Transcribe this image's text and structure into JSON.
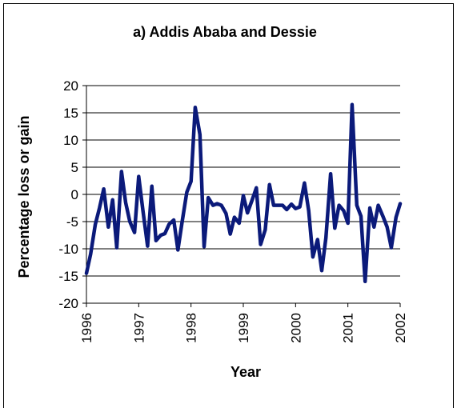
{
  "chart_data": {
    "type": "line",
    "title": "a) Addis Ababa and Dessie",
    "xlabel": "Year",
    "ylabel": "Percentage loss or gain",
    "ylim": [
      -20,
      20
    ],
    "xlim": [
      1996,
      2002
    ],
    "x_ticks": [
      "1996",
      "1997",
      "1998",
      "1999",
      "2000",
      "2001",
      "2002"
    ],
    "y_ticks": [
      "20",
      "15",
      "10",
      "5",
      "0",
      "-5",
      "-10",
      "-15",
      "-20"
    ],
    "grid": "horizontal",
    "line_color": "#0b1a7a",
    "series": [
      {
        "x": [
          1996.0,
          1996.08,
          1996.17,
          1996.25,
          1996.33,
          1996.42,
          1996.5,
          1996.58,
          1996.67,
          1996.75,
          1996.83,
          1996.92,
          1997.0,
          1997.08,
          1997.17,
          1997.25,
          1997.33,
          1997.42,
          1997.5,
          1997.58,
          1997.67,
          1997.75,
          1997.83,
          1997.92,
          1998.0,
          1998.08,
          1998.17,
          1998.25,
          1998.33,
          1998.42,
          1998.5,
          1998.58,
          1998.67,
          1998.75,
          1998.83,
          1998.92,
          1999.0,
          1999.08,
          1999.17,
          1999.25,
          1999.33,
          1999.42,
          1999.5,
          1999.58,
          1999.67,
          1999.75,
          1999.83,
          1999.92,
          2000.0,
          2000.08,
          2000.17,
          2000.25,
          2000.33,
          2000.42,
          2000.5,
          2000.58,
          2000.67,
          2000.75,
          2000.83,
          2000.92,
          2001.0,
          2001.08,
          2001.17,
          2001.25,
          2001.33,
          2001.42,
          2001.5,
          2001.58,
          2001.67,
          2001.75,
          2001.83,
          2001.92,
          2002.0
        ],
        "values": [
          -14.5,
          -11,
          -5.5,
          -2.5,
          1,
          -6,
          -1,
          -9.8,
          4.2,
          -1.5,
          -5,
          -7,
          3.3,
          -3,
          -9.5,
          1.5,
          -8.5,
          -7.5,
          -7.2,
          -5.5,
          -4.7,
          -10.2,
          -5,
          0.4,
          2.4,
          16,
          11,
          -9.6,
          -0.6,
          -2,
          -1.7,
          -2,
          -3.5,
          -7.3,
          -4.2,
          -5.3,
          -0.2,
          -3.4,
          -1,
          1.2,
          -9.2,
          -6.5,
          1.8,
          -2,
          -2,
          -2,
          -2.8,
          -1.8,
          -2.6,
          -2.3,
          2.1,
          -3,
          -11.5,
          -8.3,
          -14,
          -8,
          3.8,
          -6.2,
          -2,
          -3,
          -5.3,
          16.5,
          -2,
          -4,
          -16,
          -2.5,
          -6,
          -2,
          -4,
          -6,
          -9.8,
          -4.2,
          -1.7
        ]
      }
    ]
  }
}
